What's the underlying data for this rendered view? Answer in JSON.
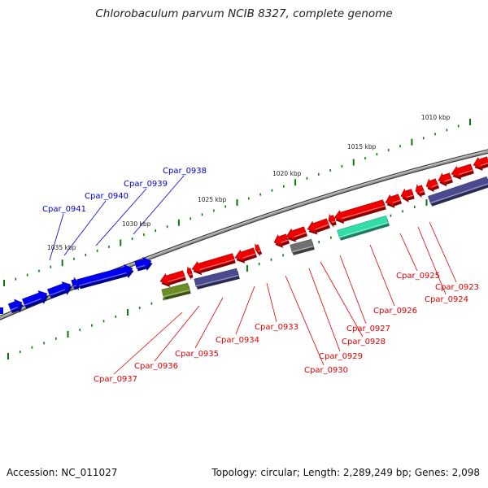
{
  "title": "Chlorobaculum parvum NCIB 8327, complete genome",
  "footer": {
    "accession": "Accession: NC_011027",
    "summary": "Topology: circular; Length: 2,289,249 bp; Genes: 2,098"
  },
  "colors": {
    "backbone": "#808080",
    "ruler_tick": "#0a7a0a",
    "forward_cds": "#0000ee",
    "reverse_cds": "#ee0000",
    "forward_label": "#0000cc",
    "reverse_label": "#dd0000",
    "gene_navy": "#4a4a8e",
    "gene_olive": "#6b8e23",
    "gene_gray": "#707070",
    "gene_aqua": "#33ddaa"
  },
  "ruler_labels": [
    "1010 kbp",
    "1015 kbp",
    "1020 kbp",
    "1025 kbp",
    "1030 kbp",
    "1035 kbp"
  ],
  "forward_labels": [
    "Cpar_0938",
    "Cpar_0939",
    "Cpar_0940",
    "Cpar_0941"
  ],
  "reverse_labels": [
    "Cpar_0923",
    "Cpar_0924",
    "Cpar_0925",
    "Cpar_0926",
    "Cpar_0927",
    "Cpar_0928",
    "Cpar_0929",
    "Cpar_0930",
    "Cpar_0933",
    "Cpar_0934",
    "Cpar_0935",
    "Cpar_0936",
    "Cpar_0937"
  ]
}
